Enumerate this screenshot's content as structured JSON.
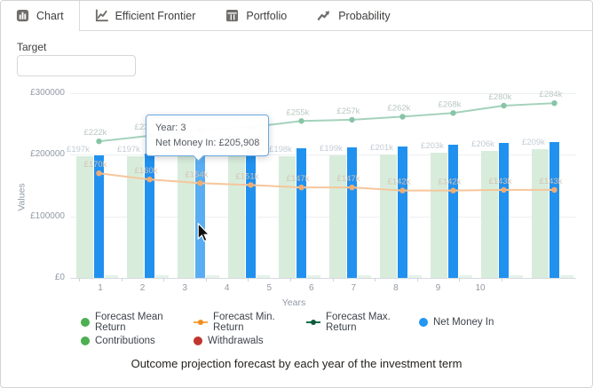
{
  "tabs": [
    {
      "label": "Chart",
      "icon": "bar-chart",
      "active": true
    },
    {
      "label": "Efficient Frontier",
      "icon": "line-chart",
      "active": false
    },
    {
      "label": "Portfolio",
      "icon": "table",
      "active": false
    },
    {
      "label": "Probability",
      "icon": "trend-arrow",
      "active": false
    }
  ],
  "target": {
    "label": "Target",
    "value": "",
    "placeholder": ""
  },
  "chart_data": {
    "type": "bar",
    "title": "",
    "xlabel": "Years",
    "ylabel": "Values",
    "x_categories": [
      "1",
      "2",
      "3",
      "4",
      "5",
      "6",
      "7",
      "8",
      "9",
      "10"
    ],
    "y_ticks": [
      {
        "label": "£0",
        "value_k": 0
      },
      {
        "label": "£100000",
        "value_k": 100
      },
      {
        "label": "£200000",
        "value_k": 200
      },
      {
        "label": "£300000",
        "value_k": 300
      }
    ],
    "ylim_k": [
      0,
      320
    ],
    "grid": true,
    "hover_year": 3,
    "series": [
      {
        "name": "Forecast Mean Return",
        "type": "bar",
        "role": "mean",
        "color": "#d8ecdc",
        "label_color": "#c3ccd5",
        "values_k": [
          197,
          197,
          198,
          199,
          198,
          199,
          201,
          203,
          206,
          209
        ],
        "labels": [
          "£197k",
          "£197k",
          "£198k",
          "£199k",
          "£198k",
          "£199k",
          "£201k",
          "£203k",
          "£206k",
          "£209k"
        ]
      },
      {
        "name": "Net Money In",
        "type": "bar",
        "role": "net",
        "color": "#2191f0",
        "hover_color": "#58adf3",
        "values_k": [
          199,
          202,
          205.9,
          208,
          210,
          212,
          214,
          216,
          219,
          221
        ]
      },
      {
        "name": "Contributions",
        "type": "bar",
        "role": "contrib",
        "color": "#e4f3e8",
        "values_k": [
          4,
          4,
          4,
          4,
          4,
          4,
          4,
          4,
          4,
          4
        ]
      },
      {
        "name": "Withdrawals",
        "type": "bar",
        "role": "withdraw",
        "color": "#c0362f",
        "values_k": [
          0,
          0,
          0,
          0,
          0,
          0,
          0,
          0,
          0,
          0
        ]
      },
      {
        "name": "Forecast Min. Return",
        "type": "line",
        "role": "min",
        "color": "#f6c69b",
        "dot_color": "#f0ad72",
        "label_color": "#d4c3b2",
        "values_k": [
          170,
          160,
          154,
          151,
          147,
          147,
          142,
          142,
          143,
          143
        ],
        "labels": [
          "£170k",
          "£160k",
          "£154k",
          "£151k",
          "£147k",
          "£147k",
          "£142k",
          "£142k",
          "£143k",
          "£143k"
        ]
      },
      {
        "name": "Forecast Max. Return",
        "type": "line",
        "role": "max",
        "color": "#a4d2bb",
        "dot_color": "#86c5a5",
        "label_color": "#bac8c0",
        "values_k": [
          222,
          231,
          241,
          245,
          255,
          257,
          262,
          268,
          280,
          284
        ],
        "labels": [
          "£222k",
          "£231k",
          "£241k",
          "£245k",
          "£255k",
          "£257k",
          "£262k",
          "£268k",
          "£280k",
          "£284k"
        ]
      }
    ]
  },
  "tooltip": {
    "line1": "Year: 3",
    "line2": "Net Money In: £205,908",
    "year": 3,
    "series": "Net Money In",
    "value": "£205,908"
  },
  "legend": {
    "rows": [
      [
        {
          "label": "Forecast Mean Return",
          "marker": "circle",
          "color": "#4caf50"
        },
        {
          "label": "Forecast Min. Return",
          "marker": "line",
          "color": "#ffa73f",
          "dot_color": "#f08c1d"
        },
        {
          "label": "Forecast Max. Return",
          "marker": "line",
          "color": "#15704a",
          "dot_color": "#0d5a39"
        },
        {
          "label": "Net Money In",
          "marker": "circle",
          "color": "#2196f3"
        }
      ],
      [
        {
          "label": "Contributions",
          "marker": "circle",
          "color": "#4caf50"
        },
        {
          "label": "Withdrawals",
          "marker": "circle",
          "color": "#c0362f"
        }
      ]
    ]
  },
  "footer": {
    "caption": "Outcome projection forecast by each year of the investment term"
  }
}
